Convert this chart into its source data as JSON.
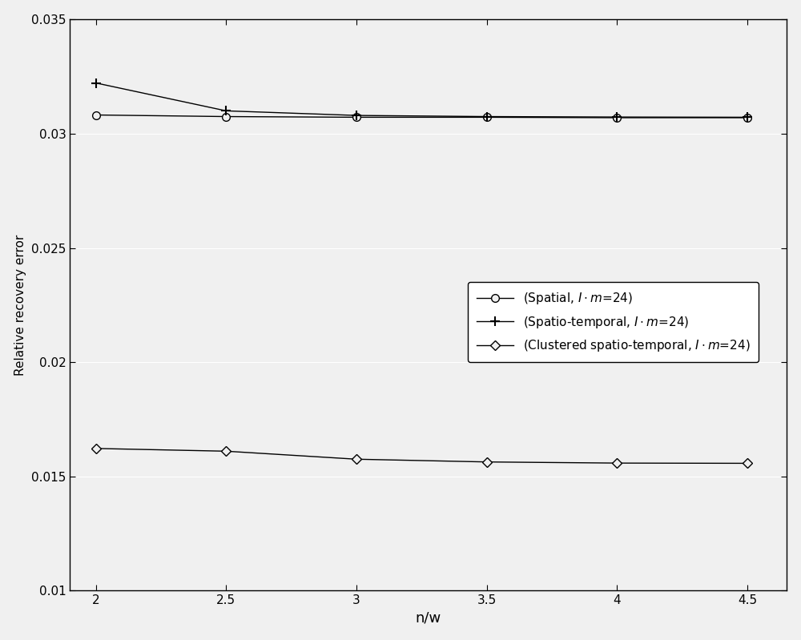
{
  "x": [
    2.0,
    2.5,
    3.0,
    3.5,
    4.0,
    4.5
  ],
  "spatial": [
    0.03082,
    0.03075,
    0.03072,
    0.03072,
    0.0307,
    0.0307
  ],
  "spatio_temporal": [
    0.03222,
    0.031,
    0.0308,
    0.03075,
    0.03073,
    0.03072
  ],
  "clustered": [
    0.01622,
    0.0161,
    0.01575,
    0.01563,
    0.01558,
    0.01557
  ],
  "xlabel": "n/w",
  "ylabel": "Relative recovery error",
  "legend_spatial": "(Spatial, $\\mathit{I}\\cdot\\mathit{m}$=24)",
  "legend_spatio": "(Spatio-temporal, $\\mathit{I}\\cdot\\mathit{m}$=24)",
  "legend_clustered": "(Clustered spatio-temporal, $\\mathit{I}\\cdot\\mathit{m}$=24)",
  "xlim": [
    1.9,
    4.65
  ],
  "ylim": [
    0.01,
    0.035
  ],
  "yticks": [
    0.01,
    0.015,
    0.02,
    0.025,
    0.03,
    0.035
  ],
  "xticks": [
    2.0,
    2.5,
    3.0,
    3.5,
    4.0,
    4.5
  ],
  "line_color": "#000000",
  "plot_bg_color": "#f0f0f0",
  "fig_bg_color": "#f0f0f0"
}
